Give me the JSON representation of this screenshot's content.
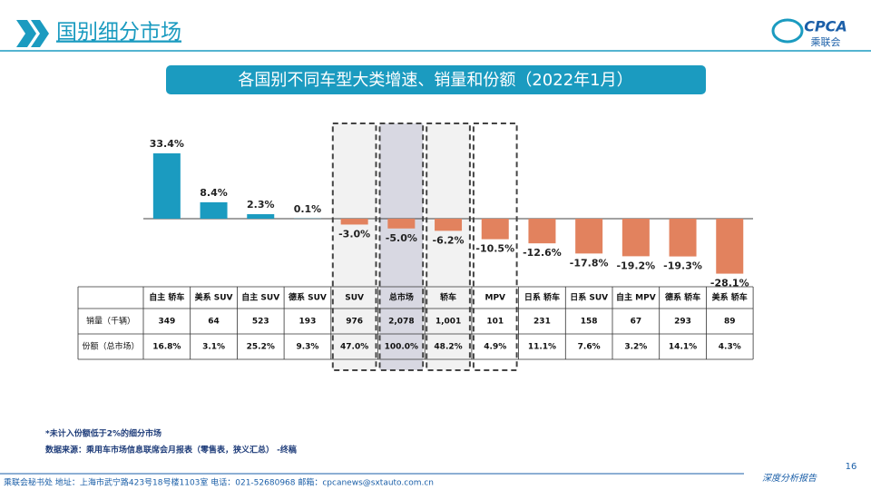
{
  "header": {
    "title": "国别细分市场",
    "logo_text": "CPCA",
    "logo_sub": "乘联会"
  },
  "chart_data": {
    "type": "bar",
    "title": "各国别不同车型大类增速、销量和份额（2022年1月）",
    "categories": [
      "自主 轿车",
      "美系 SUV",
      "自主 SUV",
      "德系 SUV",
      "SUV",
      "总市场",
      "轿车",
      "MPV",
      "日系 轿车",
      "日系 SUV",
      "自主 MPV",
      "德系 轿车",
      "美系 轿车"
    ],
    "values": [
      33.4,
      8.4,
      2.3,
      0.1,
      -3.0,
      -5.0,
      -6.2,
      -10.5,
      -12.6,
      -17.8,
      -19.2,
      -19.3,
      -28.1
    ],
    "value_labels": [
      "33.4%",
      "8.4%",
      "2.3%",
      "0.1%",
      "-3.0%",
      "-5.0%",
      "-6.2%",
      "-10.5%",
      "-12.6%",
      "-17.8%",
      "-19.2%",
      "-19.3%",
      "-28.1%"
    ],
    "color": "#1b9bc0",
    "negative_color": "#e2825e"
  },
  "table": {
    "rows": [
      {
        "label": "销量（千辆）",
        "cells": [
          "349",
          "64",
          "523",
          "193",
          "976",
          "2,078",
          "1,001",
          "101",
          "231",
          "158",
          "67",
          "293",
          "89"
        ]
      },
      {
        "label": "份额（总市场）",
        "cells": [
          "16.8%",
          "3.1%",
          "25.2%",
          "9.3%",
          "47.0%",
          "100.0%",
          "48.2%",
          "4.9%",
          "11.1%",
          "7.6%",
          "3.2%",
          "14.1%",
          "4.3%"
        ]
      }
    ]
  },
  "notes": [
    "*未计入份额低于2%的细分市场",
    "数据来源：乘用车市场信息联席会月报表（零售表，狭义汇总） -终稿"
  ],
  "footer": {
    "address": "乘联会秘书处   地址：上海市武宁路423号18号楼1103室   电话：021-52680968   邮箱：cpcanews@sxtauto.com.cn",
    "tag": "深度分析报告",
    "page": "16"
  }
}
